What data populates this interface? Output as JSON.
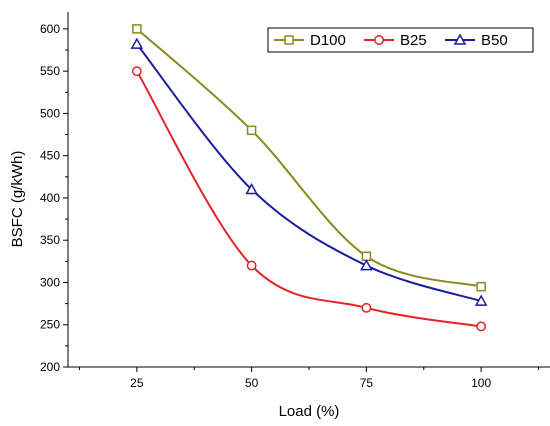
{
  "chart_data": {
    "type": "line",
    "title": "",
    "xlabel": "Load (%)",
    "ylabel": "BSFC (g/kWh)",
    "x": [
      25,
      50,
      75,
      100
    ],
    "xlim": [
      10,
      115
    ],
    "ylim": [
      200,
      620
    ],
    "xticks": [
      25,
      50,
      75,
      100
    ],
    "yticks": [
      200,
      250,
      300,
      350,
      400,
      450,
      500,
      550,
      600
    ],
    "grid": false,
    "legend_position": "top-right",
    "series": [
      {
        "name": "D100",
        "values": [
          600,
          480,
          331,
          295
        ],
        "color": "#8a8a1e",
        "marker": "square"
      },
      {
        "name": "B25",
        "values": [
          550,
          320,
          270,
          248
        ],
        "color": "#e0262a",
        "marker": "circle"
      },
      {
        "name": "B50",
        "values": [
          582,
          410,
          320,
          278
        ],
        "color": "#1c1c9e",
        "marker": "triangle"
      }
    ]
  }
}
